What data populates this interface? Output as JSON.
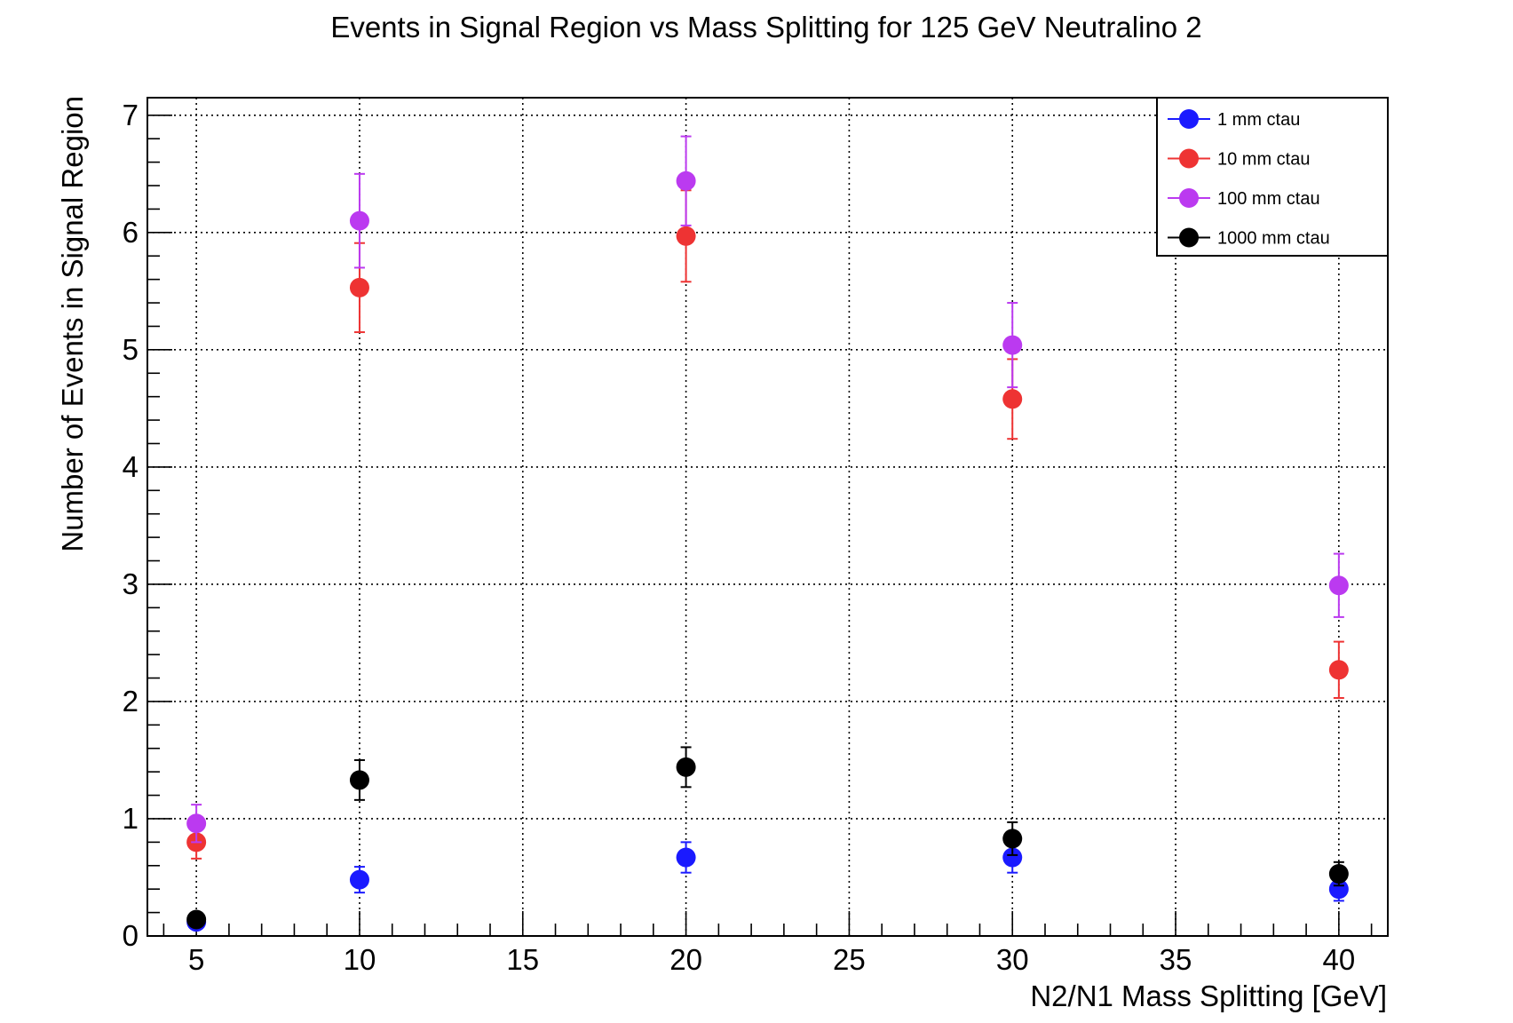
{
  "chart_data": {
    "type": "scatter",
    "title": "Events in Signal Region vs Mass Splitting for 125 GeV Neutralino 2",
    "xlabel": "N2/N1 Mass Splitting [GeV]",
    "ylabel": "Number of Events in Signal Region",
    "xlim": [
      3.5,
      41.5
    ],
    "ylim": [
      0,
      7.15
    ],
    "xticks": [
      5,
      10,
      15,
      20,
      25,
      30,
      35,
      40
    ],
    "yticks": [
      0,
      1,
      2,
      3,
      4,
      5,
      6,
      7
    ],
    "x_minor_step": 1,
    "y_minor_step": 0.2,
    "grid": true,
    "legend_position": "top-right",
    "series": [
      {
        "name": "1 mm ctau",
        "color": "#1a1aff",
        "x": [
          5,
          10,
          20,
          30,
          40
        ],
        "y": [
          0.12,
          0.48,
          0.67,
          0.67,
          0.4
        ],
        "yerr": [
          0.04,
          0.11,
          0.13,
          0.13,
          0.1
        ]
      },
      {
        "name": "10 mm ctau",
        "color": "#ee3333",
        "x": [
          5,
          10,
          20,
          30,
          40
        ],
        "y": [
          0.8,
          5.53,
          5.97,
          4.58,
          2.27
        ],
        "yerr": [
          0.14,
          0.38,
          0.39,
          0.34,
          0.24
        ]
      },
      {
        "name": "100 mm ctau",
        "color": "#bb3af0",
        "x": [
          5,
          10,
          20,
          30,
          40
        ],
        "y": [
          0.96,
          6.1,
          6.44,
          5.04,
          2.99
        ],
        "yerr": [
          0.16,
          0.4,
          0.38,
          0.36,
          0.27
        ]
      },
      {
        "name": "1000 mm ctau",
        "color": "#000000",
        "x": [
          5,
          10,
          20,
          30,
          40
        ],
        "y": [
          0.14,
          1.33,
          1.44,
          0.83,
          0.53
        ],
        "yerr": [
          0.04,
          0.17,
          0.17,
          0.14,
          0.1
        ]
      }
    ]
  }
}
